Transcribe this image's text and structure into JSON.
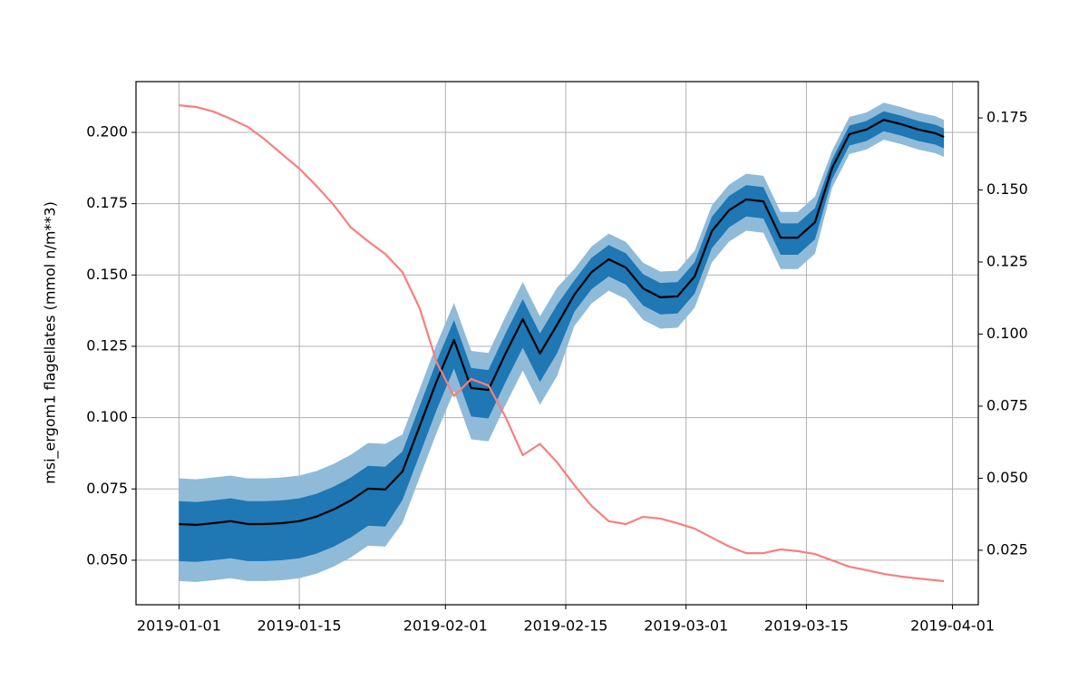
{
  "chart_data": {
    "type": "line",
    "y_label": "msi_ergom1 flagellates (mmol n/m**3)",
    "x": [
      "2019-01-01",
      "2019-01-03",
      "2019-01-05",
      "2019-01-07",
      "2019-01-09",
      "2019-01-11",
      "2019-01-13",
      "2019-01-15",
      "2019-01-17",
      "2019-01-19",
      "2019-01-21",
      "2019-01-23",
      "2019-01-25",
      "2019-01-27",
      "2019-01-29",
      "2019-01-31",
      "2019-02-02",
      "2019-02-04",
      "2019-02-06",
      "2019-02-08",
      "2019-02-10",
      "2019-02-12",
      "2019-02-14",
      "2019-02-16",
      "2019-02-18",
      "2019-02-20",
      "2019-02-22",
      "2019-02-24",
      "2019-02-26",
      "2019-02-28",
      "2019-03-02",
      "2019-03-04",
      "2019-03-06",
      "2019-03-08",
      "2019-03-10",
      "2019-03-12",
      "2019-03-14",
      "2019-03-16",
      "2019-03-18",
      "2019-03-20",
      "2019-03-22",
      "2019-03-24",
      "2019-03-26",
      "2019-03-28",
      "2019-03-30",
      "2019-03-31"
    ],
    "bands": [
      {
        "color": "#8fbbd9",
        "lower": [
          0.0427,
          0.0424,
          0.043,
          0.0437,
          0.0427,
          0.0427,
          0.043,
          0.0437,
          0.0453,
          0.0478,
          0.051,
          0.0551,
          0.0548,
          0.0631,
          0.079,
          0.0949,
          0.1092,
          0.0924,
          0.0917,
          0.1045,
          0.1165,
          0.1045,
          0.1146,
          0.1321,
          0.14,
          0.1445,
          0.1416,
          0.1343,
          0.1312,
          0.1315,
          0.1385,
          0.1544,
          0.1617,
          0.1655,
          0.1648,
          0.1521,
          0.1521,
          0.1575,
          0.1806,
          0.1924,
          0.194,
          0.1974,
          0.1959,
          0.194,
          0.1927,
          0.1914
        ],
        "upper": [
          0.0787,
          0.0784,
          0.079,
          0.0797,
          0.0787,
          0.0787,
          0.079,
          0.0797,
          0.0813,
          0.0838,
          0.087,
          0.0911,
          0.0908,
          0.0941,
          0.11,
          0.1259,
          0.1402,
          0.1234,
          0.1227,
          0.1355,
          0.1475,
          0.1355,
          0.1456,
          0.1521,
          0.16,
          0.1645,
          0.1616,
          0.1543,
          0.1512,
          0.1515,
          0.1585,
          0.1744,
          0.1817,
          0.1855,
          0.1848,
          0.1721,
          0.1721,
          0.1775,
          0.1936,
          0.2054,
          0.207,
          0.2104,
          0.2089,
          0.207,
          0.2057,
          0.2044
        ]
      },
      {
        "color": "#1f77b4",
        "lower": [
          0.0497,
          0.0494,
          0.05,
          0.0507,
          0.0497,
          0.0497,
          0.05,
          0.0507,
          0.0523,
          0.0548,
          0.058,
          0.0621,
          0.0618,
          0.0711,
          0.087,
          0.1029,
          0.1172,
          0.1004,
          0.0997,
          0.1125,
          0.1245,
          0.1125,
          0.1226,
          0.1371,
          0.145,
          0.1495,
          0.1466,
          0.1393,
          0.1362,
          0.1365,
          0.1435,
          0.1594,
          0.1667,
          0.1705,
          0.1698,
          0.1571,
          0.1571,
          0.1625,
          0.1836,
          0.1954,
          0.197,
          0.2004,
          0.1989,
          0.197,
          0.1957,
          0.1944
        ],
        "upper": [
          0.0707,
          0.0704,
          0.071,
          0.0717,
          0.0707,
          0.0707,
          0.071,
          0.0717,
          0.0733,
          0.0758,
          0.079,
          0.0831,
          0.0828,
          0.0881,
          0.104,
          0.1199,
          0.1342,
          0.1174,
          0.1167,
          0.1295,
          0.1415,
          0.1295,
          0.1396,
          0.1481,
          0.156,
          0.1605,
          0.1576,
          0.1503,
          0.1472,
          0.1475,
          0.1545,
          0.1704,
          0.1777,
          0.1815,
          0.1808,
          0.1681,
          0.1681,
          0.1735,
          0.1906,
          0.2024,
          0.204,
          0.2074,
          0.2059,
          0.204,
          0.2027,
          0.2014
        ]
      }
    ],
    "series": [
      {
        "color": "#000000",
        "values": [
          0.0627,
          0.0624,
          0.063,
          0.0637,
          0.0627,
          0.0627,
          0.063,
          0.0637,
          0.0653,
          0.0678,
          0.071,
          0.0751,
          0.0748,
          0.0811,
          0.097,
          0.1129,
          0.1272,
          0.1104,
          0.1097,
          0.1225,
          0.1345,
          0.1225,
          0.1326,
          0.1431,
          0.151,
          0.1555,
          0.1526,
          0.1453,
          0.1422,
          0.1425,
          0.1495,
          0.1654,
          0.1727,
          0.1765,
          0.1758,
          0.1631,
          0.1631,
          0.1685,
          0.1876,
          0.1994,
          0.201,
          0.2044,
          0.2029,
          0.201,
          0.1997,
          0.1984
        ]
      },
      {
        "color": "#f77f7f",
        "axis": "y2",
        "values": [
          0.1794,
          0.1788,
          0.1772,
          0.1747,
          0.1719,
          0.1675,
          0.1624,
          0.1574,
          0.1514,
          0.1448,
          0.137,
          0.1322,
          0.1278,
          0.1215,
          0.109,
          0.0901,
          0.0785,
          0.0844,
          0.0822,
          0.0712,
          0.058,
          0.0619,
          0.0555,
          0.0476,
          0.0404,
          0.0351,
          0.0341,
          0.0366,
          0.036,
          0.0344,
          0.0325,
          0.0294,
          0.0263,
          0.024,
          0.024,
          0.0253,
          0.0247,
          0.0237,
          0.0215,
          0.0193,
          0.0181,
          0.0168,
          0.0159,
          0.0152,
          0.0146,
          0.0143
        ]
      }
    ],
    "xlim": [
      "2018-12-27",
      "2019-04-04"
    ],
    "xticks": [
      "2019-01-01",
      "2019-01-15",
      "2019-02-01",
      "2019-02-15",
      "2019-03-01",
      "2019-03-15",
      "2019-04-01"
    ],
    "ylim": [
      0.0344,
      0.2178
    ],
    "yticks": [
      {
        "value": 0.05,
        "label": "0.050"
      },
      0.075,
      {
        "value": 0.1,
        "label": "0.100"
      },
      0.125,
      {
        "value": 0.15,
        "label": "0.150"
      },
      0.175,
      {
        "value": 0.2,
        "label": "0.200"
      }
    ],
    "y2lim": [
      0.0061,
      0.1876
    ],
    "y2ticks": [
      0.025,
      {
        "value": 0.05,
        "label": "0.050"
      },
      0.075,
      {
        "value": 0.1,
        "label": "0.100"
      },
      0.125,
      {
        "value": 0.15,
        "label": "0.150"
      },
      0.175
    ],
    "grid": true
  }
}
